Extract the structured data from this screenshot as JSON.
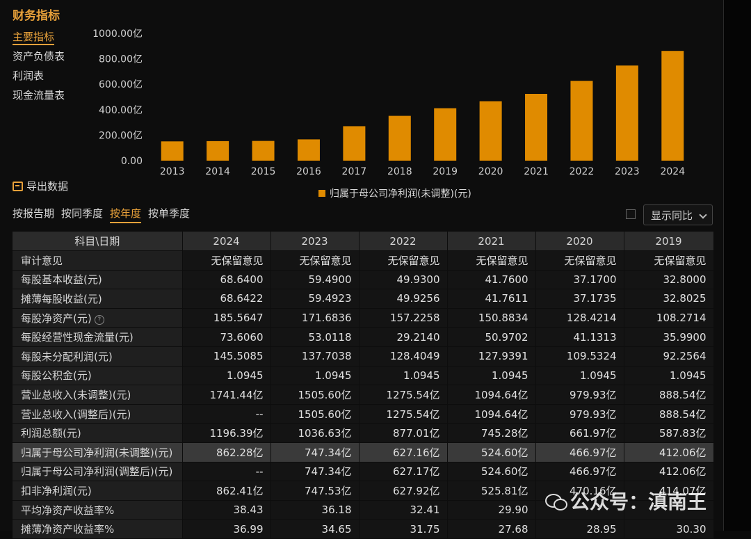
{
  "page_title": "财务指标",
  "side_nav": [
    {
      "label": "主要指标",
      "active": true
    },
    {
      "label": "资产负债表",
      "active": false
    },
    {
      "label": "利润表",
      "active": false
    },
    {
      "label": "现金流量表",
      "active": false
    }
  ],
  "export_label": "导出数据",
  "period_tabs": [
    {
      "label": "按报告期",
      "active": false
    },
    {
      "label": "按同季度",
      "active": false
    },
    {
      "label": "按年度",
      "active": true
    },
    {
      "label": "按单季度",
      "active": false
    }
  ],
  "yoy_select": "显示同比",
  "colors": {
    "accent": "#e8a13a",
    "bar": "#e08b00"
  },
  "chart_data": {
    "type": "bar",
    "categories": [
      "2013",
      "2014",
      "2015",
      "2016",
      "2017",
      "2018",
      "2019",
      "2020",
      "2021",
      "2022",
      "2023",
      "2024"
    ],
    "series": [
      {
        "name": "归属于母公司净利润(未调整)(元)",
        "values": [
          151.4,
          153.5,
          155.0,
          167.2,
          270.8,
          352.0,
          412.06,
          466.97,
          524.6,
          627.16,
          747.34,
          862.28
        ]
      }
    ],
    "yticks": [
      "0.00",
      "200.00亿",
      "400.00亿",
      "600.00亿",
      "800.00亿",
      "1000.00亿"
    ],
    "ylim": [
      0,
      1000
    ],
    "legend_position": "bottom-center"
  },
  "table": {
    "corner": "科目\\日期",
    "years": [
      "2024",
      "2023",
      "2022",
      "2021",
      "2020",
      "2019"
    ],
    "more_icon": "double-chevron-right-icon",
    "rows": [
      {
        "label": "审计意见",
        "values": [
          "无保留意见",
          "无保留意见",
          "无保留意见",
          "无保留意见",
          "无保留意见",
          "无保留意见"
        ]
      },
      {
        "label": "每股基本收益(元)",
        "values": [
          "68.6400",
          "59.4900",
          "49.9300",
          "41.7600",
          "37.1700",
          "32.8000"
        ]
      },
      {
        "label": "摊薄每股收益(元)",
        "values": [
          "68.6422",
          "59.4923",
          "49.9256",
          "41.7611",
          "37.1735",
          "32.8025"
        ]
      },
      {
        "label": "每股净资产(元)",
        "help": "?",
        "values": [
          "185.5647",
          "171.6836",
          "157.2258",
          "150.8834",
          "128.4214",
          "108.2714"
        ]
      },
      {
        "label": "每股经营性现金流量(元)",
        "values": [
          "73.6060",
          "53.0118",
          "29.2140",
          "50.9702",
          "41.1313",
          "35.9900"
        ]
      },
      {
        "label": "每股未分配利润(元)",
        "values": [
          "145.5085",
          "137.7038",
          "128.4049",
          "127.9391",
          "109.5324",
          "92.2564"
        ]
      },
      {
        "label": "每股公积金(元)",
        "values": [
          "1.0945",
          "1.0945",
          "1.0945",
          "1.0945",
          "1.0945",
          "1.0945"
        ]
      },
      {
        "label": "营业总收入(未调整)(元)",
        "values": [
          "1741.44亿",
          "1505.60亿",
          "1275.54亿",
          "1094.64亿",
          "979.93亿",
          "888.54亿"
        ]
      },
      {
        "label": "营业总收入(调整后)(元)",
        "values": [
          "--",
          "1505.60亿",
          "1275.54亿",
          "1094.64亿",
          "979.93亿",
          "888.54亿"
        ]
      },
      {
        "label": "利润总额(元)",
        "values": [
          "1196.39亿",
          "1036.63亿",
          "877.01亿",
          "745.28亿",
          "661.97亿",
          "587.83亿"
        ]
      },
      {
        "label": "归属于母公司净利润(未调整)(元)",
        "highlight": true,
        "values": [
          "862.28亿",
          "747.34亿",
          "627.16亿",
          "524.60亿",
          "466.97亿",
          "412.06亿"
        ]
      },
      {
        "label": "归属于母公司净利润(调整后)(元)",
        "values": [
          "--",
          "747.34亿",
          "627.17亿",
          "524.60亿",
          "466.97亿",
          "412.06亿"
        ]
      },
      {
        "label": "扣非净利润(元)",
        "values": [
          "862.41亿",
          "747.53亿",
          "627.92亿",
          "525.81亿",
          "470.16亿",
          "414.07亿"
        ]
      },
      {
        "label": "平均净资产收益率%",
        "values": [
          "38.43",
          "36.18",
          "32.41",
          "29.90",
          "",
          ""
        ]
      },
      {
        "label": "摊薄净资产收益率%",
        "values": [
          "36.99",
          "34.65",
          "31.75",
          "27.68",
          "28.95",
          "30.30"
        ]
      }
    ]
  },
  "watermark": "公众号：滇南王"
}
